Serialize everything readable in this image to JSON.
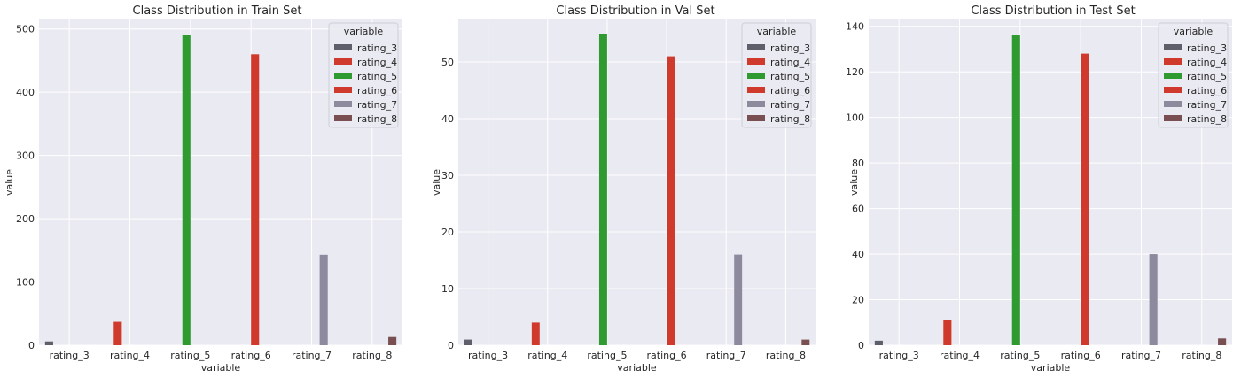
{
  "chart_data": [
    {
      "type": "bar",
      "title": "Class Distribution in Train Set",
      "xlabel": "variable",
      "ylabel": "value",
      "ylim": [
        0,
        515
      ],
      "yticks": [
        0,
        100,
        200,
        300,
        400,
        500
      ],
      "categories": [
        "rating_3",
        "rating_4",
        "rating_5",
        "rating_6",
        "rating_7",
        "rating_8"
      ],
      "values": [
        6,
        37,
        491,
        460,
        143,
        13
      ],
      "grid": true,
      "legend": {
        "title": "variable",
        "placement": "top-right",
        "entries": [
          "rating_3",
          "rating_4",
          "rating_5",
          "rating_6",
          "rating_7",
          "rating_8"
        ]
      }
    },
    {
      "type": "bar",
      "title": "Class Distribution in Val Set",
      "xlabel": "variable",
      "ylabel": "value",
      "ylim": [
        0,
        57.5
      ],
      "yticks": [
        0,
        10,
        20,
        30,
        40,
        50
      ],
      "categories": [
        "rating_3",
        "rating_4",
        "rating_5",
        "rating_6",
        "rating_7",
        "rating_8"
      ],
      "values": [
        1,
        4,
        55,
        51,
        16,
        1
      ],
      "grid": true,
      "legend": {
        "title": "variable",
        "placement": "top-right",
        "entries": [
          "rating_3",
          "rating_4",
          "rating_5",
          "rating_6",
          "rating_7",
          "rating_8"
        ]
      }
    },
    {
      "type": "bar",
      "title": "Class Distribution in Test Set",
      "xlabel": "variable",
      "ylabel": "value",
      "ylim": [
        0,
        143
      ],
      "yticks": [
        0,
        20,
        40,
        60,
        80,
        100,
        120,
        140
      ],
      "categories": [
        "rating_3",
        "rating_4",
        "rating_5",
        "rating_6",
        "rating_7",
        "rating_8"
      ],
      "values": [
        2,
        11,
        136,
        128,
        40,
        3
      ],
      "grid": true,
      "legend": {
        "title": "variable",
        "placement": "top-right",
        "entries": [
          "rating_3",
          "rating_4",
          "rating_5",
          "rating_6",
          "rating_7",
          "rating_8"
        ]
      }
    }
  ],
  "colors": {
    "rating_3": "#5f5f6b",
    "rating_4": "#d03a2c",
    "rating_5": "#2f9a2f",
    "rating_6": "#d03a2c",
    "rating_7": "#8e8a9e",
    "rating_8": "#7a4f52",
    "plot_background": "#eaeaf2",
    "grid": "#ffffff"
  }
}
